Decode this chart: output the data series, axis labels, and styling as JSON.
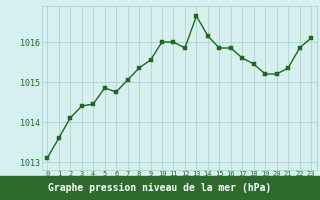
{
  "x": [
    0,
    1,
    2,
    3,
    4,
    5,
    6,
    7,
    8,
    9,
    10,
    11,
    12,
    13,
    14,
    15,
    16,
    17,
    18,
    19,
    20,
    21,
    22,
    23
  ],
  "y": [
    1013.1,
    1013.6,
    1014.1,
    1014.4,
    1014.45,
    1014.85,
    1014.75,
    1015.05,
    1015.35,
    1015.55,
    1016.0,
    1016.0,
    1015.85,
    1016.65,
    1016.15,
    1015.85,
    1015.85,
    1015.6,
    1015.45,
    1015.2,
    1015.2,
    1015.35,
    1015.85,
    1016.1
  ],
  "line_color": "#1a6b1a",
  "marker_color": "#1a6b1a",
  "bg_color": "#d6f0f0",
  "grid_color": "#aacccc",
  "xlabel": "Graphe pression niveau de la mer (hPa)",
  "tick_color": "#1a6b1a",
  "ylim": [
    1012.8,
    1016.9
  ],
  "yticks": [
    1013,
    1014,
    1015,
    1016
  ],
  "xticks": [
    0,
    1,
    2,
    3,
    4,
    5,
    6,
    7,
    8,
    9,
    10,
    11,
    12,
    13,
    14,
    15,
    16,
    17,
    18,
    19,
    20,
    21,
    22,
    23
  ],
  "marker_size": 2.5,
  "line_width": 1.0,
  "bottom_bg_color": "#2d6b2d",
  "bottom_text_color": "#ffffff"
}
